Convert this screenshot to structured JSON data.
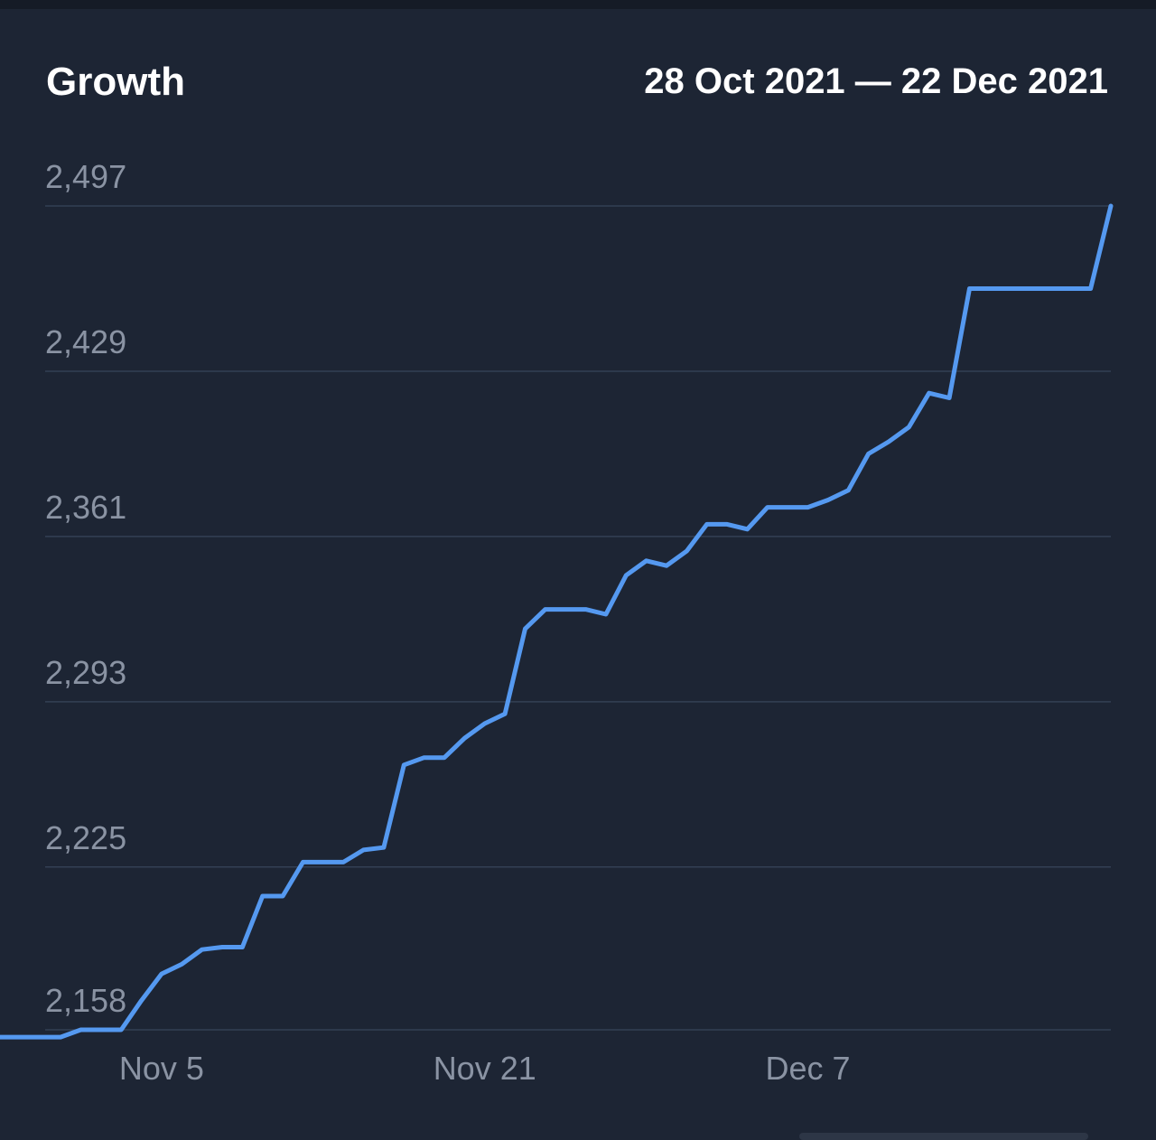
{
  "header": {
    "title": "Growth",
    "date_range": "28 Oct 2021 — 22 Dec 2021"
  },
  "colors": {
    "background": "#1d2534",
    "line": "#5599f0",
    "grid": "#334055",
    "tick_text": "#8a93a3",
    "title_text": "#ffffff"
  },
  "chart_data": {
    "type": "line",
    "title": "Growth",
    "xlabel": "",
    "ylabel": "",
    "grid": true,
    "y_ticks": [
      "2,497",
      "2,429",
      "2,361",
      "2,293",
      "2,225",
      "2,158"
    ],
    "y_tick_values": [
      2497,
      2429,
      2361,
      2293,
      2225,
      2158
    ],
    "ylim": [
      2158,
      2497
    ],
    "x_ticks": [
      "Nov 5",
      "Nov 21",
      "Dec 7"
    ],
    "x_tick_values": [
      "2021-11-05",
      "2021-11-21",
      "2021-12-07"
    ],
    "xlim": [
      "2021-10-28",
      "2021-12-22"
    ],
    "series": [
      {
        "x": [
          "2021-10-28",
          "2021-10-29",
          "2021-10-30",
          "2021-10-31",
          "2021-11-01",
          "2021-11-02",
          "2021-11-03",
          "2021-11-04",
          "2021-11-05",
          "2021-11-06",
          "2021-11-07",
          "2021-11-08",
          "2021-11-09",
          "2021-11-10",
          "2021-11-11",
          "2021-11-12",
          "2021-11-13",
          "2021-11-14",
          "2021-11-15",
          "2021-11-16",
          "2021-11-17",
          "2021-11-18",
          "2021-11-19",
          "2021-11-20",
          "2021-11-21",
          "2021-11-22",
          "2021-11-23",
          "2021-11-24",
          "2021-11-25",
          "2021-11-26",
          "2021-11-27",
          "2021-11-28",
          "2021-11-29",
          "2021-11-30",
          "2021-12-01",
          "2021-12-02",
          "2021-12-03",
          "2021-12-04",
          "2021-12-05",
          "2021-12-06",
          "2021-12-07",
          "2021-12-08",
          "2021-12-09",
          "2021-12-10",
          "2021-12-11",
          "2021-12-12",
          "2021-12-13",
          "2021-12-14",
          "2021-12-15",
          "2021-12-16",
          "2021-12-17",
          "2021-12-18",
          "2021-12-19",
          "2021-12-20",
          "2021-12-21",
          "2021-12-22"
        ],
        "values": [
          2155,
          2155,
          2155,
          2155,
          2158,
          2158,
          2158,
          2170,
          2181,
          2185,
          2191,
          2192,
          2192,
          2213,
          2213,
          2227,
          2227,
          2227,
          2232,
          2233,
          2267,
          2270,
          2270,
          2278,
          2284,
          2288,
          2323,
          2331,
          2331,
          2331,
          2329,
          2345,
          2351,
          2349,
          2355,
          2366,
          2366,
          2364,
          2373,
          2373,
          2373,
          2376,
          2380,
          2395,
          2400,
          2406,
          2420,
          2418,
          2463,
          2463,
          2463,
          2463,
          2463,
          2463,
          2463,
          2497
        ]
      }
    ]
  }
}
